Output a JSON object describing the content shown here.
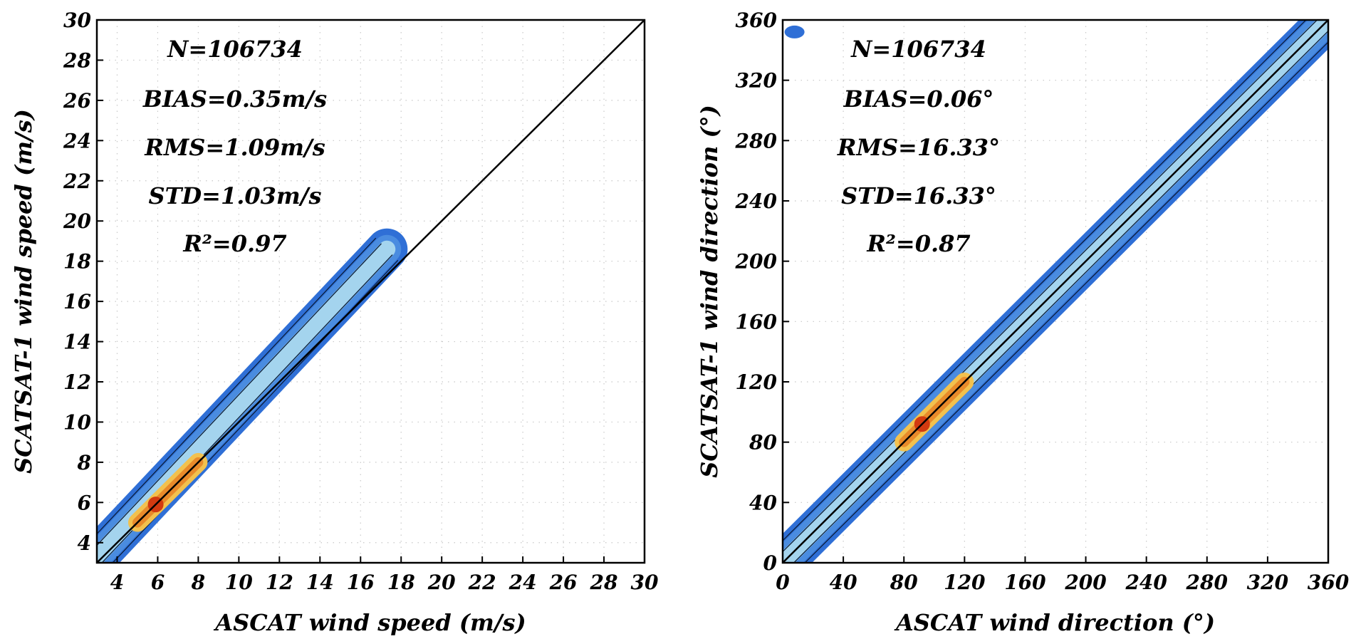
{
  "chart_data": [
    {
      "type": "scatter",
      "xlabel": "ASCAT wind speed (m/s)",
      "ylabel": "SCATSAT-1 wind speed (m/s)",
      "xlim": [
        3,
        30
      ],
      "ylim": [
        3,
        30
      ],
      "x_ticks": [
        "4",
        "6",
        "8",
        "10",
        "12",
        "14",
        "16",
        "18",
        "20",
        "22",
        "24",
        "26",
        "28",
        "30"
      ],
      "y_ticks": [
        "4",
        "6",
        "8",
        "10",
        "12",
        "14",
        "16",
        "18",
        "20",
        "22",
        "24",
        "26",
        "28",
        "30"
      ],
      "grid": "dotted",
      "stats": [
        "N=106734",
        "BIAS=0.35m/s",
        "RMS=1.09m/s",
        "STD=1.03m/s",
        "R²=0.97"
      ],
      "identity_line": [
        [
          3,
          3
        ],
        [
          30,
          30
        ]
      ],
      "density_extent": [
        [
          3,
          3.3
        ],
        [
          5,
          5
        ],
        [
          8,
          8.5
        ],
        [
          12,
          12.4
        ],
        [
          15,
          15.5
        ],
        [
          17.3,
          18.6
        ]
      ],
      "peak_density": [
        [
          5,
          5
        ],
        [
          6,
          6
        ],
        [
          7,
          7
        ],
        [
          8,
          8
        ]
      ],
      "colors": {
        "low": "#2f6fd6",
        "mid": "#aedcf0",
        "high": "#f2c14e",
        "peak": "#d23a10"
      }
    },
    {
      "type": "scatter",
      "xlabel": "ASCAT wind direction (°)",
      "ylabel": "SCATSAT-1 wind direction (°)",
      "xlim": [
        0,
        360
      ],
      "ylim": [
        0,
        360
      ],
      "x_ticks": [
        "0",
        "40",
        "80",
        "120",
        "160",
        "200",
        "240",
        "280",
        "320",
        "360"
      ],
      "y_ticks": [
        "0",
        "40",
        "80",
        "120",
        "160",
        "200",
        "240",
        "280",
        "320",
        "360"
      ],
      "grid": "dotted",
      "stats": [
        "N=106734",
        "BIAS=0.06°",
        "RMS=16.33°",
        "STD=16.33°",
        "R²=0.87"
      ],
      "identity_line": [
        [
          0,
          0
        ],
        [
          360,
          360
        ]
      ],
      "density_extent": [
        [
          0,
          0
        ],
        [
          80,
          80
        ],
        [
          160,
          160
        ],
        [
          240,
          240
        ],
        [
          320,
          320
        ],
        [
          360,
          360
        ]
      ],
      "peak_density": [
        [
          80,
          80
        ],
        [
          100,
          100
        ],
        [
          120,
          120
        ]
      ],
      "outlier_cluster": [
        [
          5,
          352
        ]
      ],
      "colors": {
        "low": "#2f6fd6",
        "mid": "#aedcf0",
        "high": "#f2c14e",
        "peak": "#d23a10"
      }
    }
  ]
}
